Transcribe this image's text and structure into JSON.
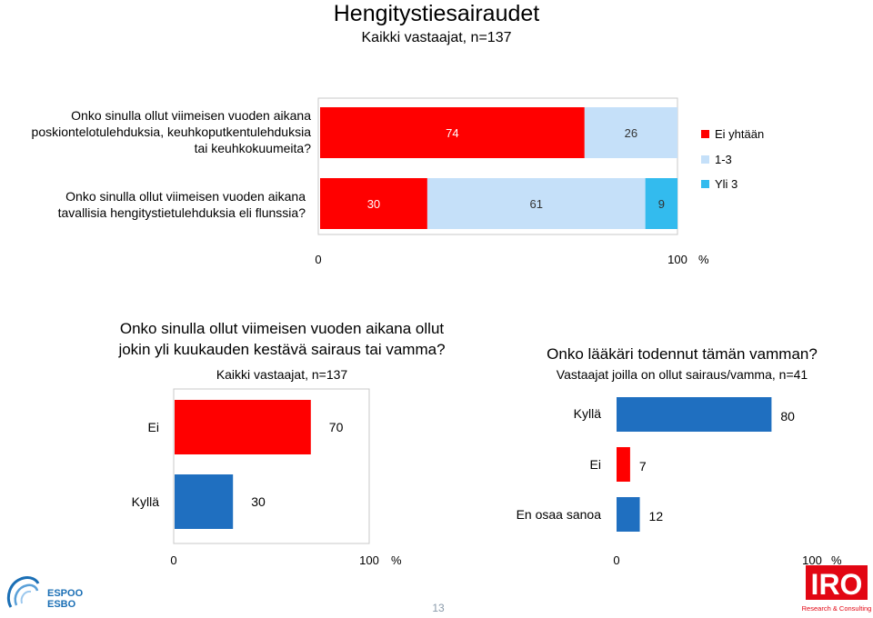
{
  "header": {
    "title": "Hengitystiesairaudet",
    "subtitle": "Kaikki vastaajat, n=137"
  },
  "top_chart": {
    "questions": [
      [
        "Onko sinulla ollut viimeisen vuoden aikana",
        "poskiontelotulehduksia, keuhkoputkentulehduksia",
        "tai keuhkokuumeita?"
      ],
      [
        "Onko sinulla ollut viimeisen vuoden aikana",
        "tavallisia hengitystietulehduksia eli flunssia?"
      ]
    ],
    "axis_min": "0",
    "axis_max": "100",
    "axis_unit": "%"
  },
  "left_chart": {
    "title_lines": [
      "Onko sinulla ollut viimeisen vuoden aikana ollut",
      "jokin yli kuukauden kestävä sairaus tai vamma?"
    ],
    "subtitle": "Kaikki vastaajat, n=137",
    "axis_min": "0",
    "axis_max": "100",
    "axis_unit": "%"
  },
  "right_chart": {
    "title": "Onko lääkäri todennut tämän vamman?",
    "subtitle": "Vastaajat joilla on ollut sairaus/vamma, n=41",
    "axis_min": "0",
    "axis_max": "100",
    "axis_unit": "%"
  },
  "chart_data": [
    {
      "type": "bar",
      "orientation": "horizontal",
      "stacked": true,
      "categories": [
        "q1",
        "q2"
      ],
      "series": [
        {
          "name": "Ei yhtään",
          "values": [
            74,
            30
          ],
          "color": "#ff0000"
        },
        {
          "name": "1-3",
          "values": [
            26,
            61
          ],
          "color": "#c5e0f9"
        },
        {
          "name": "Yli 3",
          "values": [
            0,
            9
          ],
          "color": "#33bbee"
        }
      ],
      "xlim": [
        0,
        100
      ],
      "legend": "right"
    },
    {
      "type": "bar",
      "orientation": "horizontal",
      "categories": [
        "Ei",
        "Kyllä"
      ],
      "values": [
        70,
        30
      ],
      "colors": [
        "#ff0000",
        "#1f6fc0"
      ],
      "xlim": [
        0,
        100
      ]
    },
    {
      "type": "bar",
      "orientation": "horizontal",
      "categories": [
        "Kyllä",
        "Ei",
        "En osaa sanoa"
      ],
      "values": [
        80,
        7,
        12
      ],
      "colors": [
        "#1f6fc0",
        "#ff0000",
        "#1f6fc0"
      ],
      "xlim": [
        0,
        100
      ]
    }
  ],
  "footer": {
    "page_number": "13",
    "logo_espoo_text": [
      "ESPOO",
      "ESBO"
    ],
    "logo_iro_text": "IRO",
    "logo_iro_tagline": "Research & Consulting"
  }
}
